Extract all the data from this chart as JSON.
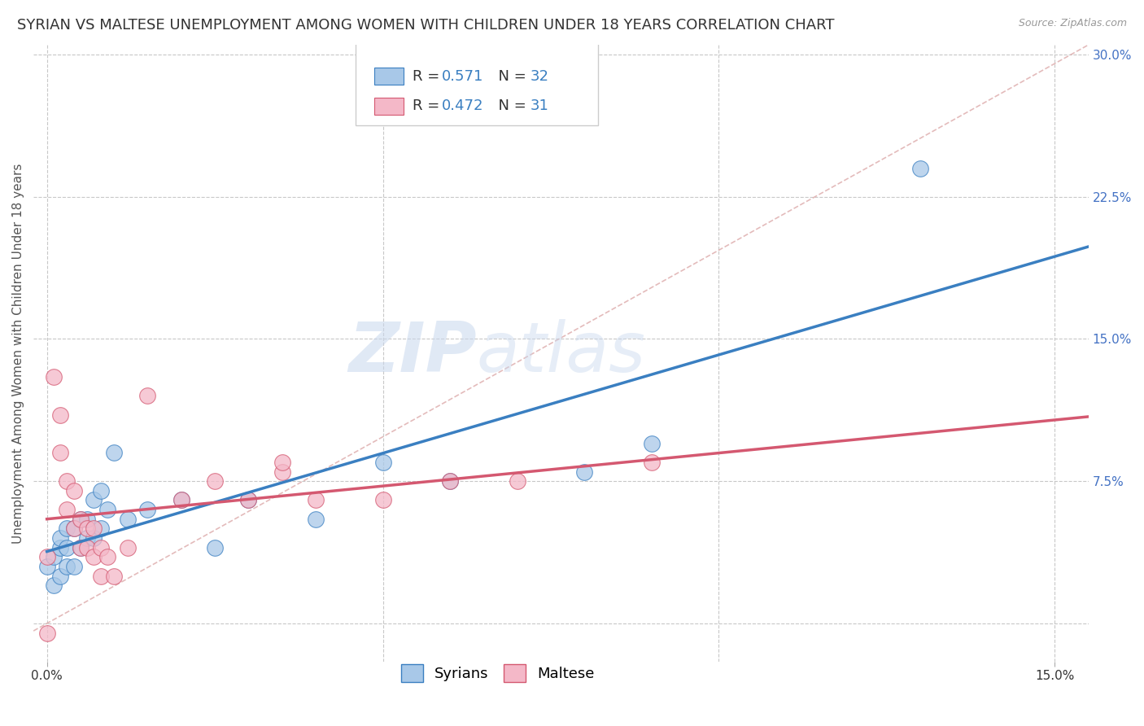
{
  "title": "SYRIAN VS MALTESE UNEMPLOYMENT AMONG WOMEN WITH CHILDREN UNDER 18 YEARS CORRELATION CHART",
  "source": "Source: ZipAtlas.com",
  "ylabel": "Unemployment Among Women with Children Under 18 years",
  "xlim": [
    -0.002,
    0.155
  ],
  "ylim": [
    -0.02,
    0.305
  ],
  "yticks_right": [
    0.0,
    0.075,
    0.15,
    0.225,
    0.3
  ],
  "ytick_labels_right": [
    "",
    "7.5%",
    "15.0%",
    "22.5%",
    "30.0%"
  ],
  "xtick_pos": [
    0.0,
    0.15
  ],
  "xtick_labels": [
    "0.0%",
    "15.0%"
  ],
  "syrian_color": "#a8c8e8",
  "syrian_line_color": "#3a7fc1",
  "maltese_color": "#f4b8c8",
  "maltese_line_color": "#d45870",
  "watermark_zip": "ZIP",
  "watermark_atlas": "atlas",
  "background_color": "#ffffff",
  "grid_color": "#c8c8c8",
  "diag_color": "#cccccc",
  "syrian_R": "0.571",
  "syrian_N": "32",
  "maltese_R": "0.472",
  "maltese_N": "31",
  "syrian_scatter_x": [
    0.0,
    0.001,
    0.001,
    0.002,
    0.002,
    0.002,
    0.003,
    0.003,
    0.003,
    0.004,
    0.004,
    0.005,
    0.005,
    0.006,
    0.006,
    0.007,
    0.007,
    0.008,
    0.008,
    0.009,
    0.01,
    0.012,
    0.015,
    0.02,
    0.025,
    0.03,
    0.04,
    0.05,
    0.06,
    0.08,
    0.09,
    0.13
  ],
  "syrian_scatter_y": [
    0.03,
    0.02,
    0.035,
    0.025,
    0.04,
    0.045,
    0.03,
    0.04,
    0.05,
    0.03,
    0.05,
    0.04,
    0.055,
    0.045,
    0.055,
    0.045,
    0.065,
    0.05,
    0.07,
    0.06,
    0.09,
    0.055,
    0.06,
    0.065,
    0.04,
    0.065,
    0.055,
    0.085,
    0.075,
    0.08,
    0.095,
    0.24
  ],
  "maltese_scatter_x": [
    0.0,
    0.0,
    0.001,
    0.002,
    0.002,
    0.003,
    0.003,
    0.004,
    0.004,
    0.005,
    0.005,
    0.006,
    0.006,
    0.007,
    0.007,
    0.008,
    0.008,
    0.009,
    0.01,
    0.012,
    0.015,
    0.02,
    0.025,
    0.03,
    0.035,
    0.035,
    0.04,
    0.05,
    0.06,
    0.07,
    0.09
  ],
  "maltese_scatter_y": [
    0.035,
    -0.005,
    0.13,
    0.09,
    0.11,
    0.06,
    0.075,
    0.05,
    0.07,
    0.04,
    0.055,
    0.04,
    0.05,
    0.035,
    0.05,
    0.025,
    0.04,
    0.035,
    0.025,
    0.04,
    0.12,
    0.065,
    0.075,
    0.065,
    0.08,
    0.085,
    0.065,
    0.065,
    0.075,
    0.075,
    0.085
  ],
  "title_fontsize": 13,
  "axis_label_fontsize": 11,
  "tick_fontsize": 11,
  "legend_fontsize": 13
}
